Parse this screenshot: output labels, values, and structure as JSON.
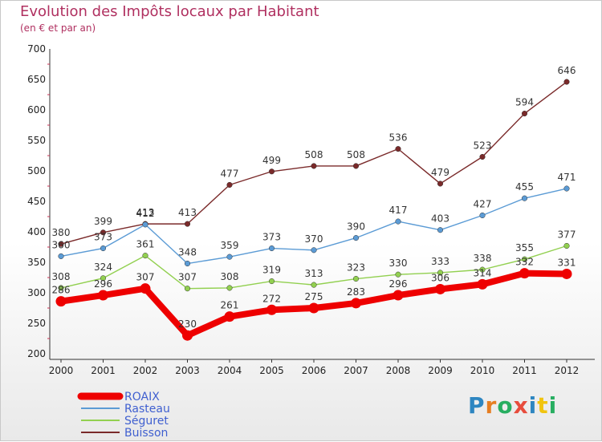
{
  "chart_data": {
    "type": "line",
    "title": "Evolution des Impôts locaux par Habitant",
    "subtitle": "(en € et par an)",
    "categories": [
      "2000",
      "2001",
      "2002",
      "2003",
      "2004",
      "2005",
      "2006",
      "2007",
      "2008",
      "2009",
      "2010",
      "2011",
      "2012"
    ],
    "ylim": [
      200,
      700
    ],
    "yticks": [
      200,
      250,
      300,
      350,
      400,
      450,
      500,
      550,
      600,
      650,
      700
    ],
    "grid": false,
    "legend_position": "bottom-left",
    "series": [
      {
        "name": "ROAIX",
        "color": "#ee0000",
        "emphasis": true,
        "values": [
          286,
          296,
          307,
          230,
          261,
          272,
          275,
          283,
          296,
          306,
          314,
          332,
          331
        ]
      },
      {
        "name": "Rasteau",
        "color": "#5b9bd5",
        "values": [
          360,
          373,
          412,
          348,
          359,
          373,
          370,
          390,
          417,
          403,
          427,
          455,
          471
        ]
      },
      {
        "name": "Séguret",
        "color": "#92d050",
        "values": [
          308,
          324,
          361,
          307,
          308,
          319,
          313,
          323,
          330,
          333,
          338,
          355,
          377
        ]
      },
      {
        "name": "Buisson",
        "color": "#7a2a2a",
        "values": [
          380,
          399,
          413,
          413,
          477,
          499,
          508,
          508,
          536,
          479,
          523,
          594,
          646
        ]
      }
    ]
  },
  "brand": {
    "logo_letters": [
      "P",
      "r",
      "o",
      "x",
      "i",
      "t",
      "i"
    ],
    "logo_colors": [
      "#2e86c1",
      "#e67e22",
      "#27ae60",
      "#e74c3c",
      "#2e86c1",
      "#f1c40f",
      "#27ae60"
    ]
  }
}
